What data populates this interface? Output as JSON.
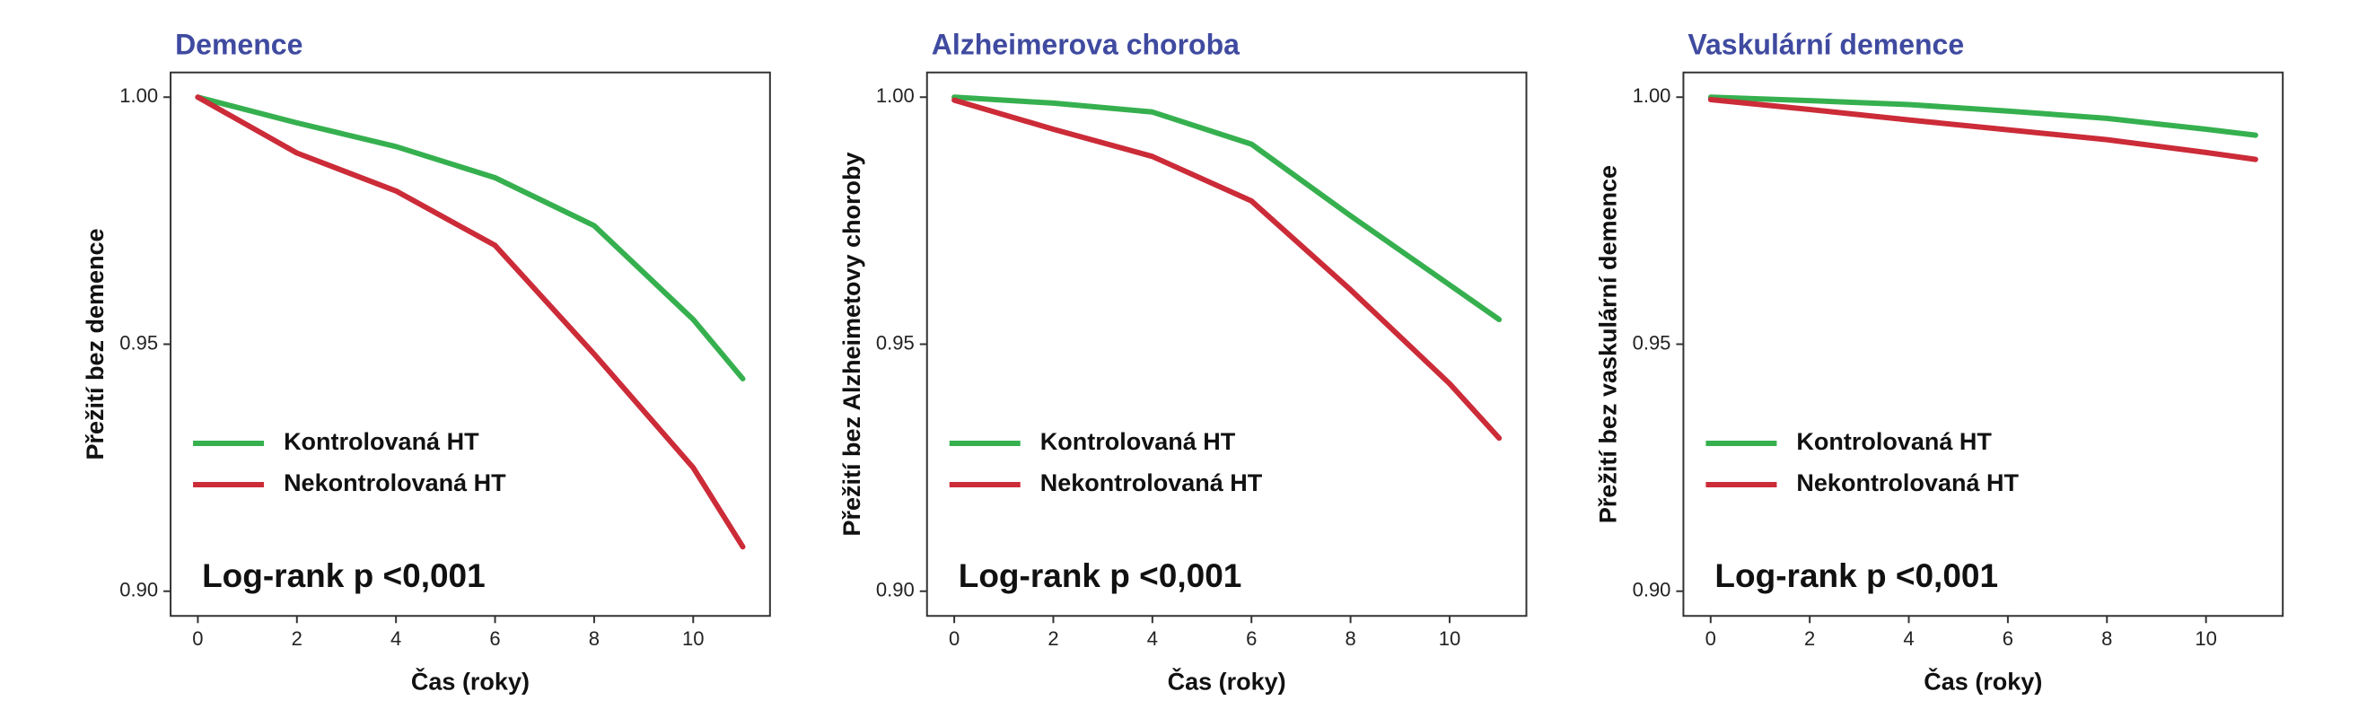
{
  "chart_data": [
    {
      "type": "line",
      "title": "Demence",
      "ylabel": "Přežití bez demence",
      "xlabel": "Čas (roky)",
      "annotation": "Log-rank p <0,001",
      "x": [
        0,
        2,
        4,
        6,
        8,
        10,
        11
      ],
      "series": [
        {
          "name": "Kontrolovaná HT",
          "color": "#36b04f",
          "values": [
            1.0,
            0.9948,
            0.99,
            0.9837,
            0.974,
            0.955,
            0.943
          ]
        },
        {
          "name": "Nekontrolovaná HT",
          "color": "#cc2b38",
          "values": [
            1.0,
            0.9887,
            0.981,
            0.97,
            0.948,
            0.925,
            0.909
          ]
        }
      ],
      "xlim": [
        -0.55,
        11.55
      ],
      "ylim": [
        0.895,
        1.005
      ],
      "xticks": [
        0,
        2,
        4,
        6,
        8,
        10
      ],
      "yticks": [
        {
          "value": 0.9,
          "label": "0.90"
        },
        0.95,
        {
          "value": 1.0,
          "label": "1.00"
        }
      ]
    },
    {
      "type": "line",
      "title": "Alzheimerova choroba",
      "ylabel": "Přežití bez Alzheimetovy choroby",
      "xlabel": "Čas (roky)",
      "annotation": "Log-rank p <0,001",
      "x": [
        0,
        2,
        4,
        6,
        8,
        10,
        11
      ],
      "series": [
        {
          "name": "Kontrolovaná HT",
          "color": "#36b04f",
          "values": [
            1.0,
            0.9988,
            0.997,
            0.9905,
            0.976,
            0.962,
            0.955
          ]
        },
        {
          "name": "Nekontrolovaná HT",
          "color": "#cc2b38",
          "values": [
            0.9994,
            0.9935,
            0.988,
            0.979,
            0.961,
            0.942,
            0.931
          ]
        }
      ],
      "xlim": [
        -0.55,
        11.55
      ],
      "ylim": [
        0.895,
        1.005
      ],
      "xticks": [
        0,
        2,
        4,
        6,
        8,
        10
      ],
      "yticks": [
        {
          "value": 0.9,
          "label": "0.90"
        },
        0.95,
        {
          "value": 1.0,
          "label": "1.00"
        }
      ]
    },
    {
      "type": "line",
      "title": "Vaskulární demence",
      "ylabel": "Přežití bez vaskulární demence",
      "xlabel": "Čas (roky)",
      "annotation": "Log-rank p <0,001",
      "x": [
        0,
        2,
        4,
        6,
        8,
        10,
        11
      ],
      "series": [
        {
          "name": "Kontrolovaná HT",
          "color": "#36b04f",
          "values": [
            1.0,
            0.9993,
            0.9985,
            0.9972,
            0.9957,
            0.9935,
            0.9923
          ]
        },
        {
          "name": "Nekontrolovaná HT",
          "color": "#cc2b38",
          "values": [
            0.9995,
            0.9975,
            0.9954,
            0.9934,
            0.9914,
            0.9888,
            0.9874
          ]
        }
      ],
      "xlim": [
        -0.55,
        11.55
      ],
      "ylim": [
        0.895,
        1.005
      ],
      "xticks": [
        0,
        2,
        4,
        6,
        8,
        10
      ],
      "yticks": [
        {
          "value": 0.9,
          "label": "0.90"
        },
        0.95,
        {
          "value": 1.0,
          "label": "1.00"
        }
      ]
    }
  ]
}
